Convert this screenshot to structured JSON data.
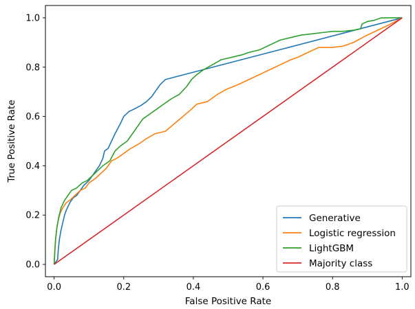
{
  "chart_data": {
    "type": "line",
    "title": "",
    "xlabel": "False Positive Rate",
    "ylabel": "True Positive Rate",
    "xlim": [
      -0.025,
      1.025
    ],
    "ylim": [
      -0.05,
      1.05
    ],
    "xticks": [
      0.0,
      0.2,
      0.4,
      0.6,
      0.8,
      1.0
    ],
    "yticks": [
      0.0,
      0.2,
      0.4,
      0.6,
      0.8,
      1.0
    ],
    "xtick_labels": [
      "0.0",
      "0.2",
      "0.4",
      "0.6",
      "0.8",
      "1.0"
    ],
    "ytick_labels": [
      "0.0",
      "0.2",
      "0.4",
      "0.6",
      "0.8",
      "1.0"
    ],
    "grid": false,
    "legend_position": "bottom-right",
    "series": [
      {
        "name": "Generative",
        "color": "#1f77b4",
        "points": [
          [
            0.0,
            0.0
          ],
          [
            0.005,
            0.01
          ],
          [
            0.01,
            0.02
          ],
          [
            0.012,
            0.06
          ],
          [
            0.015,
            0.1
          ],
          [
            0.02,
            0.14
          ],
          [
            0.025,
            0.17
          ],
          [
            0.03,
            0.2
          ],
          [
            0.035,
            0.22
          ],
          [
            0.045,
            0.25
          ],
          [
            0.055,
            0.27
          ],
          [
            0.065,
            0.28
          ],
          [
            0.075,
            0.3
          ],
          [
            0.085,
            0.32
          ],
          [
            0.1,
            0.34
          ],
          [
            0.11,
            0.36
          ],
          [
            0.12,
            0.38
          ],
          [
            0.13,
            0.4
          ],
          [
            0.14,
            0.43
          ],
          [
            0.145,
            0.46
          ],
          [
            0.155,
            0.47
          ],
          [
            0.165,
            0.5
          ],
          [
            0.175,
            0.53
          ],
          [
            0.19,
            0.57
          ],
          [
            0.2,
            0.6
          ],
          [
            0.215,
            0.62
          ],
          [
            0.23,
            0.63
          ],
          [
            0.25,
            0.645
          ],
          [
            0.265,
            0.66
          ],
          [
            0.28,
            0.68
          ],
          [
            0.29,
            0.7
          ],
          [
            0.305,
            0.73
          ],
          [
            0.32,
            0.75
          ],
          [
            1.0,
            1.0
          ]
        ]
      },
      {
        "name": "Logistic regression",
        "color": "#ff7f0e",
        "points": [
          [
            0.0,
            0.0
          ],
          [
            0.002,
            0.06
          ],
          [
            0.005,
            0.11
          ],
          [
            0.008,
            0.15
          ],
          [
            0.012,
            0.18
          ],
          [
            0.018,
            0.21
          ],
          [
            0.025,
            0.23
          ],
          [
            0.035,
            0.25
          ],
          [
            0.045,
            0.26
          ],
          [
            0.06,
            0.28
          ],
          [
            0.075,
            0.3
          ],
          [
            0.09,
            0.31
          ],
          [
            0.1,
            0.33
          ],
          [
            0.12,
            0.35
          ],
          [
            0.135,
            0.37
          ],
          [
            0.15,
            0.39
          ],
          [
            0.165,
            0.42
          ],
          [
            0.18,
            0.43
          ],
          [
            0.2,
            0.45
          ],
          [
            0.22,
            0.47
          ],
          [
            0.245,
            0.49
          ],
          [
            0.265,
            0.51
          ],
          [
            0.29,
            0.53
          ],
          [
            0.32,
            0.54
          ],
          [
            0.345,
            0.57
          ],
          [
            0.37,
            0.6
          ],
          [
            0.395,
            0.63
          ],
          [
            0.41,
            0.65
          ],
          [
            0.44,
            0.66
          ],
          [
            0.47,
            0.69
          ],
          [
            0.495,
            0.71
          ],
          [
            0.53,
            0.73
          ],
          [
            0.56,
            0.75
          ],
          [
            0.59,
            0.77
          ],
          [
            0.62,
            0.79
          ],
          [
            0.65,
            0.81
          ],
          [
            0.68,
            0.83
          ],
          [
            0.7,
            0.84
          ],
          [
            0.73,
            0.86
          ],
          [
            0.76,
            0.88
          ],
          [
            0.8,
            0.88
          ],
          [
            0.83,
            0.885
          ],
          [
            0.86,
            0.9
          ],
          [
            0.9,
            0.93
          ],
          [
            0.93,
            0.95
          ],
          [
            0.96,
            0.97
          ],
          [
            1.0,
            1.0
          ]
        ]
      },
      {
        "name": "LightGBM",
        "color": "#2ca02c",
        "points": [
          [
            0.0,
            0.0
          ],
          [
            0.002,
            0.05
          ],
          [
            0.004,
            0.1
          ],
          [
            0.008,
            0.15
          ],
          [
            0.013,
            0.19
          ],
          [
            0.02,
            0.23
          ],
          [
            0.03,
            0.26
          ],
          [
            0.04,
            0.28
          ],
          [
            0.05,
            0.3
          ],
          [
            0.065,
            0.31
          ],
          [
            0.08,
            0.33
          ],
          [
            0.095,
            0.34
          ],
          [
            0.11,
            0.36
          ],
          [
            0.125,
            0.38
          ],
          [
            0.14,
            0.4
          ],
          [
            0.16,
            0.42
          ],
          [
            0.175,
            0.46
          ],
          [
            0.19,
            0.48
          ],
          [
            0.21,
            0.5
          ],
          [
            0.225,
            0.53
          ],
          [
            0.24,
            0.56
          ],
          [
            0.255,
            0.59
          ],
          [
            0.275,
            0.61
          ],
          [
            0.295,
            0.63
          ],
          [
            0.315,
            0.65
          ],
          [
            0.335,
            0.67
          ],
          [
            0.36,
            0.69
          ],
          [
            0.38,
            0.72
          ],
          [
            0.395,
            0.75
          ],
          [
            0.41,
            0.77
          ],
          [
            0.43,
            0.79
          ],
          [
            0.455,
            0.81
          ],
          [
            0.48,
            0.83
          ],
          [
            0.51,
            0.84
          ],
          [
            0.54,
            0.85
          ],
          [
            0.56,
            0.86
          ],
          [
            0.59,
            0.87
          ],
          [
            0.62,
            0.89
          ],
          [
            0.65,
            0.91
          ],
          [
            0.68,
            0.92
          ],
          [
            0.71,
            0.93
          ],
          [
            0.74,
            0.935
          ],
          [
            0.77,
            0.94
          ],
          [
            0.8,
            0.945
          ],
          [
            0.83,
            0.945
          ],
          [
            0.86,
            0.95
          ],
          [
            0.88,
            0.955
          ],
          [
            0.885,
            0.975
          ],
          [
            0.9,
            0.985
          ],
          [
            0.92,
            0.99
          ],
          [
            0.94,
            1.0
          ],
          [
            1.0,
            1.0
          ]
        ]
      },
      {
        "name": "Majority class",
        "color": "#d62728",
        "points": [
          [
            0.0,
            0.0
          ],
          [
            1.0,
            1.0
          ]
        ]
      }
    ]
  }
}
